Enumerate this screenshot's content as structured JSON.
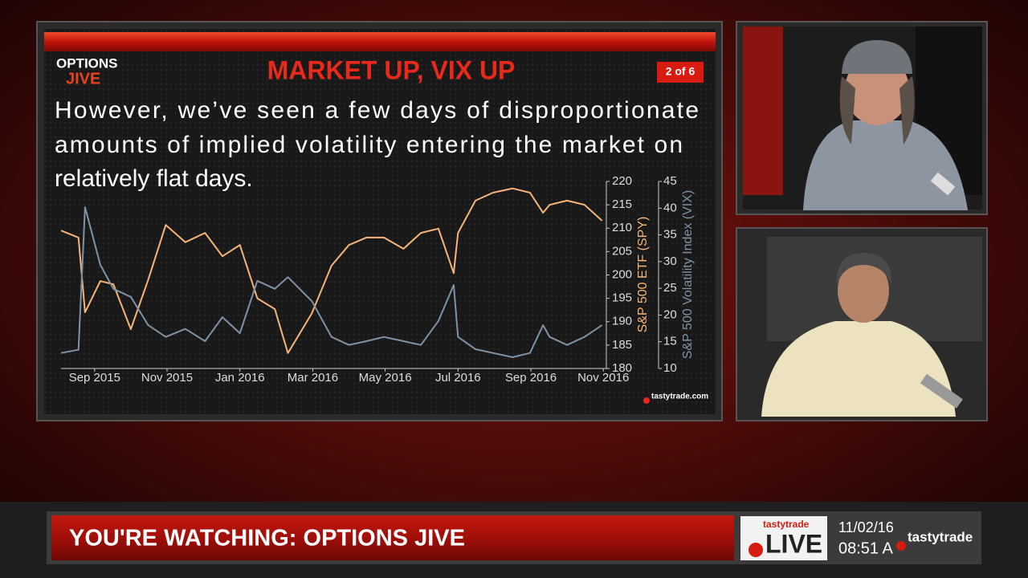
{
  "slide": {
    "logo_top": "OPTIONS",
    "logo_bottom": "JIVE",
    "title": "MARKET UP, VIX UP",
    "page": "2 of 6",
    "text_lines": [
      "However, we’ve seen a few days of disproportionate",
      "amounts of implied volatility entering the market on",
      "relatively flat days."
    ],
    "watermark": "tastytrade.com"
  },
  "chart_data": {
    "type": "line",
    "x": [
      2015.59,
      2015.63,
      2015.645,
      2015.68,
      2015.71,
      2015.75,
      2015.79,
      2015.83,
      2015.875,
      2015.92,
      2015.96,
      2016.0,
      2016.04,
      2016.08,
      2016.11,
      2016.165,
      2016.21,
      2016.25,
      2016.29,
      2016.33,
      2016.375,
      2016.415,
      2016.455,
      2016.49,
      2016.5,
      2016.54,
      2016.58,
      2016.625,
      2016.665,
      2016.695,
      2016.71,
      2016.75,
      2016.79,
      2016.83
    ],
    "series": [
      {
        "name": "S&P 500 ETF (SPY)",
        "color": "#f5b57a",
        "values": [
          209.5,
          208,
          192,
          198.7,
          198,
          188.4,
          199,
          210.7,
          207,
          209,
          204,
          206.4,
          195,
          192.7,
          183.3,
          191.8,
          202,
          206.4,
          208,
          208,
          205.6,
          209,
          209.9,
          200.4,
          209,
          215.9,
          217.6,
          218.5,
          217.6,
          213.3,
          215,
          215.9,
          215,
          211.6
        ]
      },
      {
        "name": "S&P 500 Volatility Index (VIX)",
        "color": "#7f93a6",
        "axis": "y2",
        "values": [
          12.9,
          13.5,
          40.2,
          29.4,
          24.9,
          23.4,
          18.1,
          15.9,
          17.4,
          15.1,
          19.6,
          16.6,
          26.4,
          24.9,
          27.1,
          22.6,
          15.9,
          14.4,
          15.1,
          15.9,
          15.1,
          14.4,
          18.9,
          25.6,
          15.9,
          13.6,
          12.9,
          12.1,
          12.9,
          18.1,
          15.9,
          14.4,
          15.9,
          18.1
        ]
      }
    ],
    "xlim": [
      2015.59,
      2016.84
    ],
    "xticks": [
      {
        "value": 2015.667,
        "label": "Sep 2015"
      },
      {
        "value": 2015.833,
        "label": "Nov 2015"
      },
      {
        "value": 2016.0,
        "label": "Jan 2016"
      },
      {
        "value": 2016.167,
        "label": "Mar 2016"
      },
      {
        "value": 2016.333,
        "label": "May 2016"
      },
      {
        "value": 2016.5,
        "label": "Jul 2016"
      },
      {
        "value": 2016.667,
        "label": "Sep 2016"
      },
      {
        "value": 2016.833,
        "label": "Nov 2016"
      }
    ],
    "ylim": [
      180,
      220
    ],
    "yticks": [
      180,
      185,
      190,
      195,
      200,
      205,
      210,
      215,
      220
    ],
    "y2lim": [
      10,
      45
    ],
    "y2ticks": [
      10,
      15,
      20,
      25,
      30,
      35,
      40,
      45
    ],
    "grid": false
  },
  "ticker": {
    "label": "YOU'RE WATCHING: OPTIONS JIVE",
    "live_brand": "tastytrade",
    "live": "LIVE",
    "date": "11/02/16",
    "time": "08:51 A",
    "brand": "tastytrade"
  }
}
